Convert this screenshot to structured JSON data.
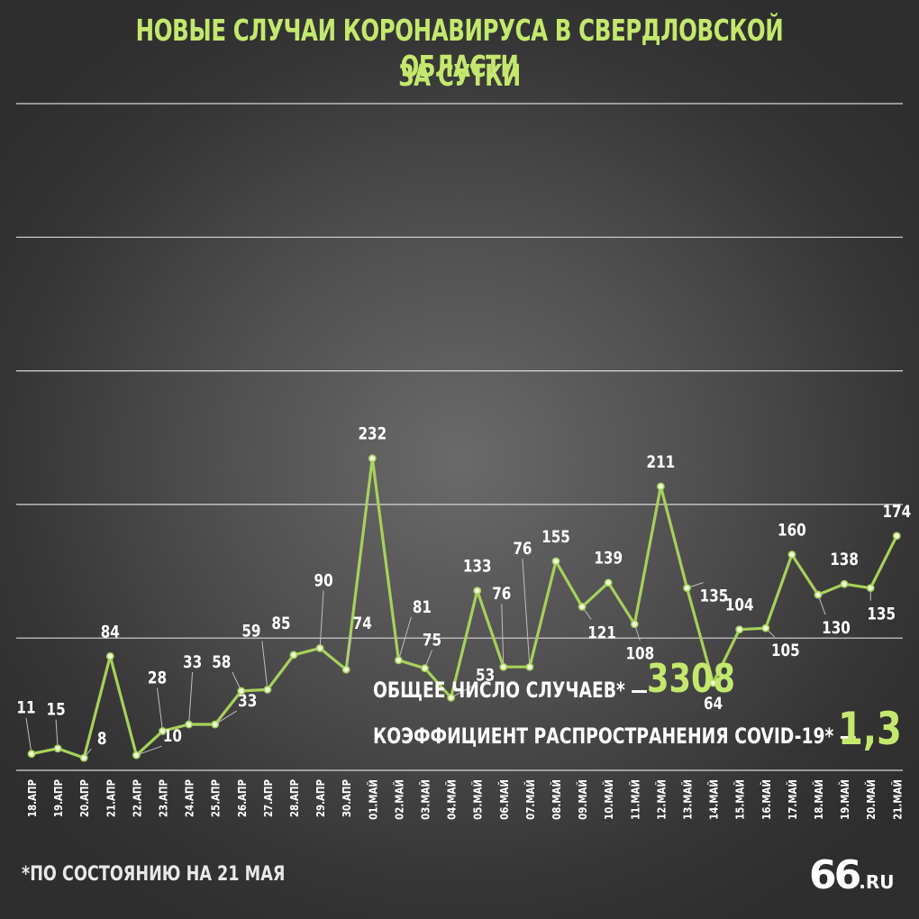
{
  "header": {
    "title_line1": "НОВЫЕ СЛУЧАИ КОРОНАВИРУСА В СВЕРДЛОВСКОЙ ОБЛАСТИ",
    "title_line2": "ЗА СУТКИ"
  },
  "stats": {
    "total_label": "ОБЩЕЕ ЧИСЛО СЛУЧАЕВ* —",
    "total_value": "3308",
    "rate_label": "КОЭФФИЦИЕНТ РАСПРОСТРАНЕНИЯ COVID-19* —",
    "rate_value": "1,3"
  },
  "footnote": "*ПО СОСТОЯНИЮ НА 21 МАЯ",
  "logo": {
    "num": "66",
    "suffix": ".RU"
  },
  "colors": {
    "accent": "#c4e86e",
    "line": "#a7d15a",
    "grid": "#d8d8d8",
    "text": "#ffffff"
  },
  "chart_data": {
    "type": "line",
    "title": "НОВЫЕ СЛУЧАИ КОРОНАВИРУСА В СВЕРДЛОВСКОЙ ОБЛАСТИ ЗА СУТКИ",
    "xlabel": "",
    "ylabel": "",
    "ylim": [
      0,
      250
    ],
    "grid": true,
    "legend": "none",
    "categories": [
      "18.АПР",
      "19.АПР",
      "20.АПР",
      "21.АПР",
      "22.АПР",
      "23.АПР",
      "24.АПР",
      "25.АПР",
      "26.АПР",
      "27.АПР",
      "28.АПР",
      "29.АПР",
      "30.АПР",
      "01.МАЙ",
      "02.МАЙ",
      "03.МАЙ",
      "04.МАЙ",
      "05.МАЙ",
      "06.МАЙ",
      "07.МАЙ",
      "08.МАЙ",
      "09.МАЙ",
      "10.МАЙ",
      "11.МАЙ",
      "12.МАЙ",
      "13.МАЙ",
      "14.МАЙ",
      "15.МАЙ",
      "16.МАЙ",
      "17.МАЙ",
      "18.МАЙ",
      "19.МАЙ",
      "20.МАЙ",
      "21.МАЙ"
    ],
    "series": [
      {
        "values": [
          11,
          15,
          8,
          84,
          10,
          28,
          33,
          33,
          58,
          59,
          85,
          90,
          74,
          232,
          81,
          75,
          53,
          133,
          76,
          76,
          155,
          121,
          139,
          108,
          211,
          135,
          64,
          104,
          105,
          160,
          130,
          138,
          135,
          174
        ]
      }
    ]
  }
}
